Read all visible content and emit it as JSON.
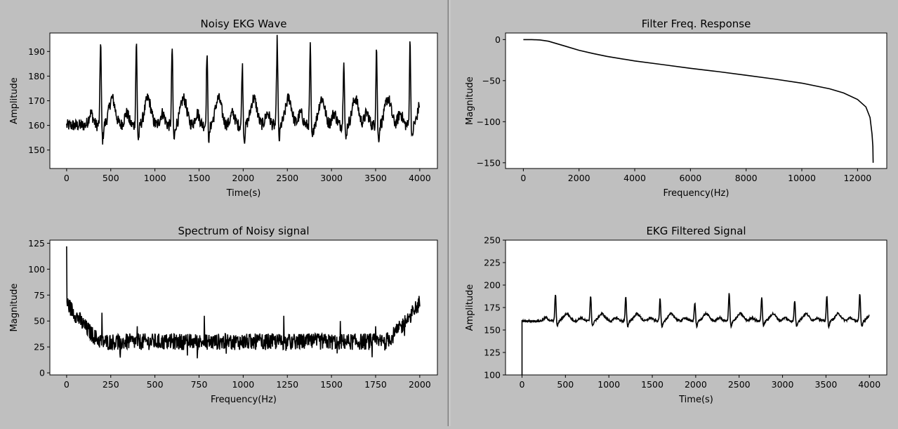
{
  "window": {
    "background": "#bfbfbf",
    "plot_background": "#ffffff",
    "line_color": "#000000"
  },
  "chart_data": [
    {
      "id": "noisy-ekg",
      "type": "line",
      "title": "Noisy EKG Wave",
      "xlabel": "Time(s)",
      "ylabel": "Amplitude",
      "xlim": [
        -190,
        4200
      ],
      "ylim": [
        142.5,
        197.5
      ],
      "xticks": [
        0,
        500,
        1000,
        1500,
        2000,
        2500,
        3000,
        3500,
        4000
      ],
      "yticks": [
        150,
        160,
        170,
        180,
        190
      ],
      "signal": {
        "n": 4000,
        "baseline": 160,
        "noise_amplitude": 2.5,
        "beat_peaks": [
          {
            "x": 385,
            "y": 195
          },
          {
            "x": 790,
            "y": 194
          },
          {
            "x": 1195,
            "y": 192
          },
          {
            "x": 1590,
            "y": 190
          },
          {
            "x": 1990,
            "y": 185
          },
          {
            "x": 2385,
            "y": 195
          },
          {
            "x": 2760,
            "y": 192
          },
          {
            "x": 3140,
            "y": 188
          },
          {
            "x": 3510,
            "y": 192
          },
          {
            "x": 3890,
            "y": 194
          }
        ],
        "t_wave_height": 11,
        "min_value": 145
      }
    },
    {
      "id": "filter-response",
      "type": "line",
      "title": "Filter Freq. Response",
      "xlabel": "Frequency(Hz)",
      "ylabel": "Magnitude",
      "xlim": [
        -640,
        13050
      ],
      "ylim": [
        -157,
        8
      ],
      "xticks": [
        0,
        2000,
        4000,
        6000,
        8000,
        10000,
        12000
      ],
      "yticks": [
        0,
        -50,
        -100,
        -150
      ],
      "points": [
        [
          0,
          0
        ],
        [
          300,
          0
        ],
        [
          600,
          -0.5
        ],
        [
          900,
          -2
        ],
        [
          1200,
          -5
        ],
        [
          1500,
          -8
        ],
        [
          2000,
          -13
        ],
        [
          2500,
          -17
        ],
        [
          3000,
          -20.5
        ],
        [
          4000,
          -26
        ],
        [
          5000,
          -30.5
        ],
        [
          6000,
          -35
        ],
        [
          7000,
          -39
        ],
        [
          8000,
          -43.5
        ],
        [
          9000,
          -48
        ],
        [
          10000,
          -53
        ],
        [
          11000,
          -60
        ],
        [
          11500,
          -65
        ],
        [
          12000,
          -73
        ],
        [
          12300,
          -82
        ],
        [
          12450,
          -95
        ],
        [
          12520,
          -115
        ],
        [
          12550,
          -130
        ],
        [
          12560,
          -150
        ]
      ]
    },
    {
      "id": "noisy-spectrum",
      "type": "line",
      "title": "Spectrum of Noisy signal",
      "xlabel": "Frequency(Hz)",
      "ylabel": "Magnitude",
      "xlim": [
        -95,
        2100
      ],
      "ylim": [
        -2,
        128
      ],
      "xticks": [
        0,
        250,
        500,
        750,
        1000,
        1250,
        1500,
        1750,
        2000
      ],
      "yticks": [
        0,
        25,
        50,
        75,
        100,
        125
      ],
      "signal": {
        "n": 2000,
        "peak_value": 122,
        "edge_level": 68,
        "floor_level": 30,
        "noise_amplitude": 8,
        "spikes": [
          {
            "x": 200,
            "y": 58
          },
          {
            "x": 400,
            "y": 45
          },
          {
            "x": 780,
            "y": 55
          },
          {
            "x": 1230,
            "y": 55
          },
          {
            "x": 1550,
            "y": 50
          },
          {
            "x": 1750,
            "y": 45
          }
        ]
      }
    },
    {
      "id": "ekg-filtered",
      "type": "line",
      "title": "EKG Filtered Signal",
      "xlabel": "Time(s)",
      "ylabel": "Amplitude",
      "xlim": [
        -190,
        4200
      ],
      "ylim": [
        100,
        250
      ],
      "xticks": [
        0,
        500,
        1000,
        1500,
        2000,
        2500,
        3000,
        3500,
        4000
      ],
      "yticks": [
        100,
        125,
        150,
        175,
        200,
        225,
        250
      ],
      "signal": {
        "n": 4000,
        "baseline": 160,
        "start_value": 100,
        "noise_amplitude": 1.2,
        "beat_peaks": [
          {
            "x": 385,
            "y": 190
          },
          {
            "x": 790,
            "y": 189
          },
          {
            "x": 1195,
            "y": 187
          },
          {
            "x": 1590,
            "y": 185
          },
          {
            "x": 1990,
            "y": 181
          },
          {
            "x": 2385,
            "y": 191
          },
          {
            "x": 2760,
            "y": 187
          },
          {
            "x": 3140,
            "y": 183
          },
          {
            "x": 3510,
            "y": 188
          },
          {
            "x": 3890,
            "y": 190
          }
        ],
        "t_wave_height": 8,
        "min_value": 148
      }
    }
  ]
}
